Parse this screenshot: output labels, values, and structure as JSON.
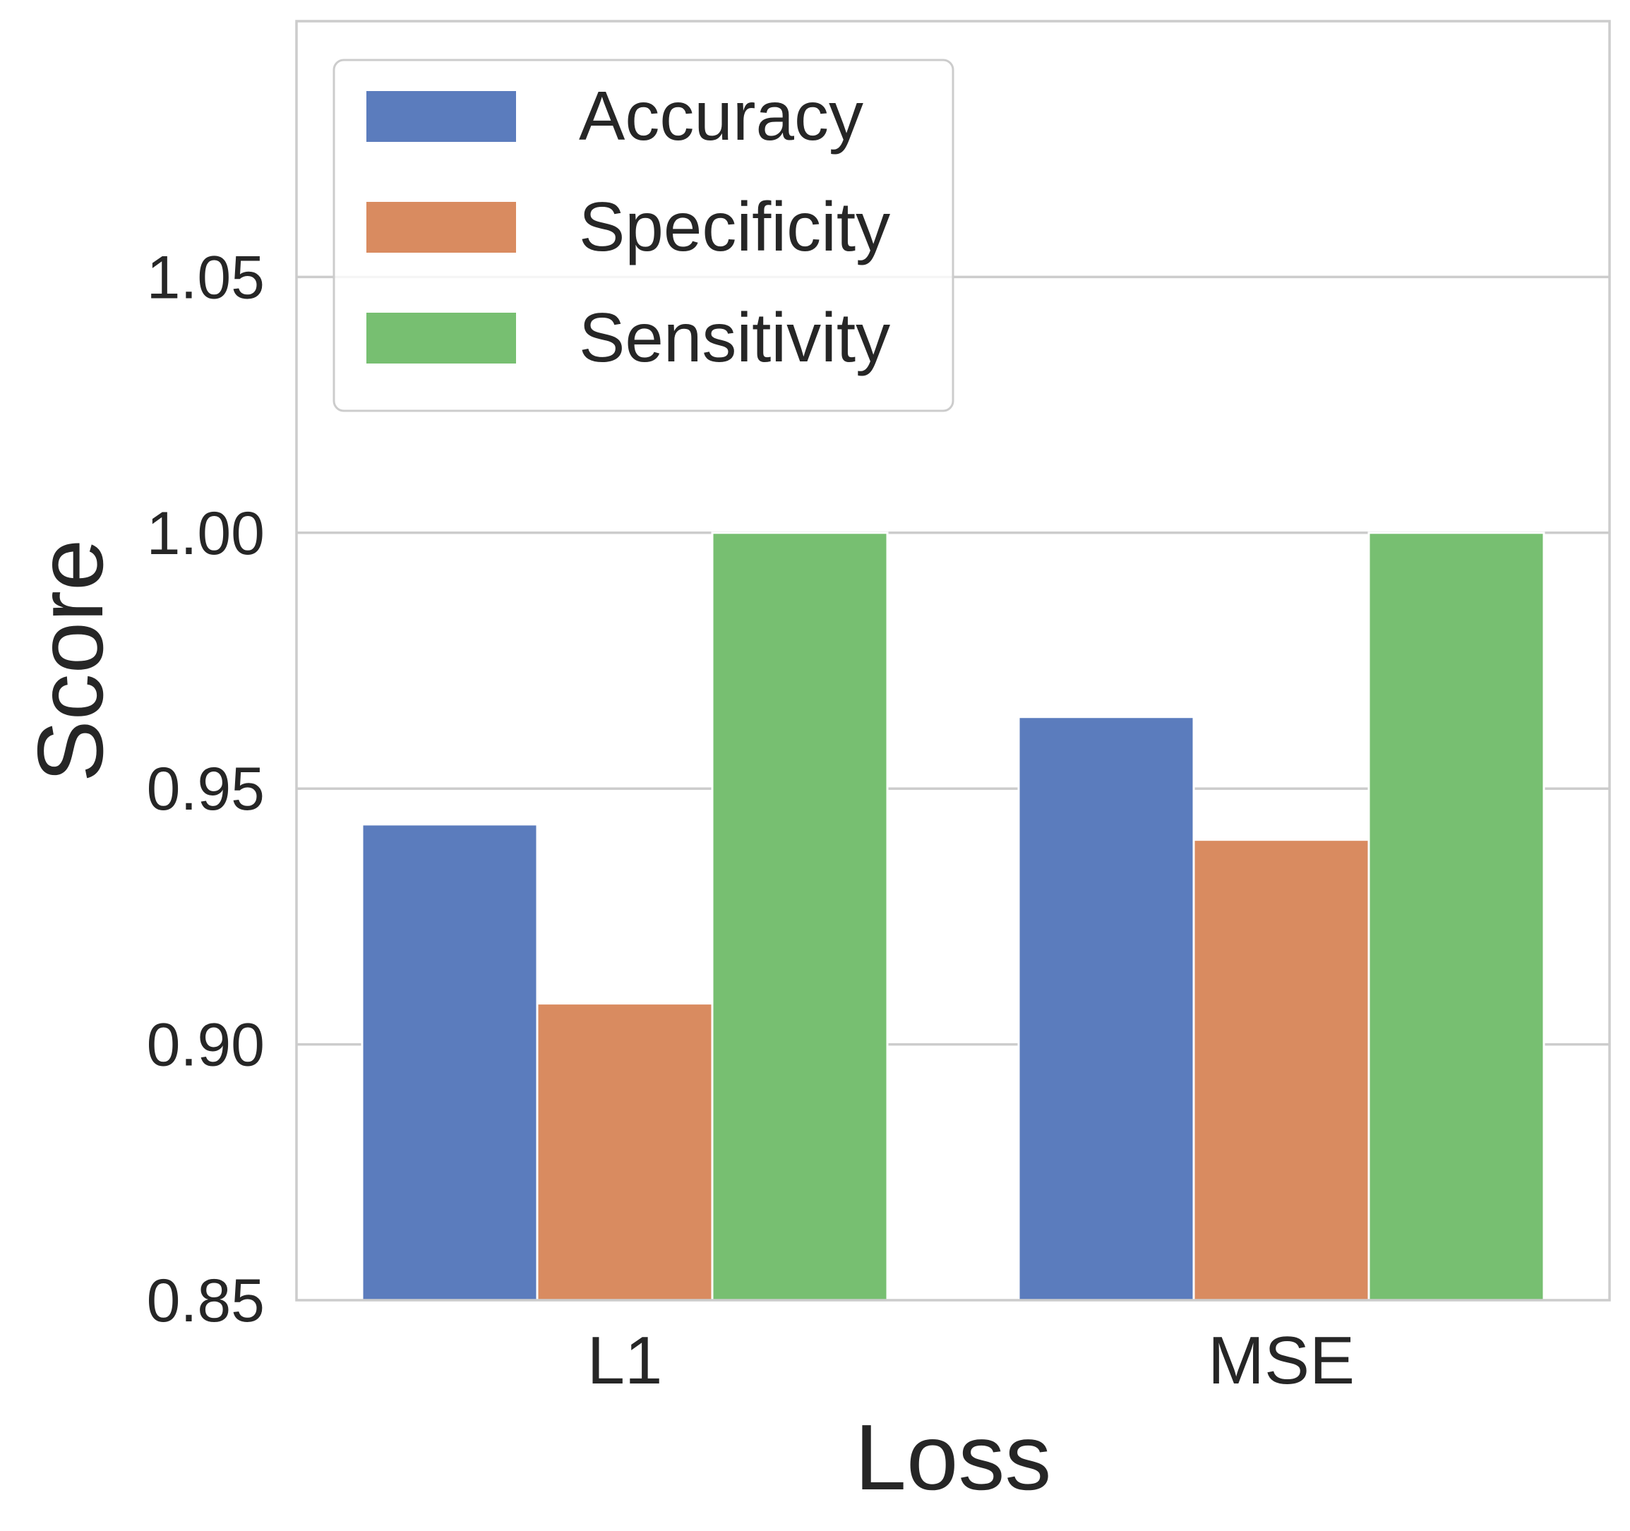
{
  "chart_data": {
    "type": "bar",
    "title": "",
    "xlabel": "Loss",
    "ylabel": "Score",
    "categories": [
      "L1",
      "MSE"
    ],
    "series": [
      {
        "name": "Accuracy",
        "color": "#5b7cbd",
        "values": [
          0.943,
          0.964
        ]
      },
      {
        "name": "Specificity",
        "color": "#d98b60",
        "values": [
          0.908,
          0.94
        ]
      },
      {
        "name": "Sensitivity",
        "color": "#77bf71",
        "values": [
          1.0,
          1.0
        ]
      }
    ],
    "ylim": [
      0.85,
      1.1
    ],
    "yticks": [
      "0.85",
      "0.90",
      "0.95",
      "1.00",
      "1.05"
    ],
    "grid": true,
    "legend_position": "top-left"
  }
}
